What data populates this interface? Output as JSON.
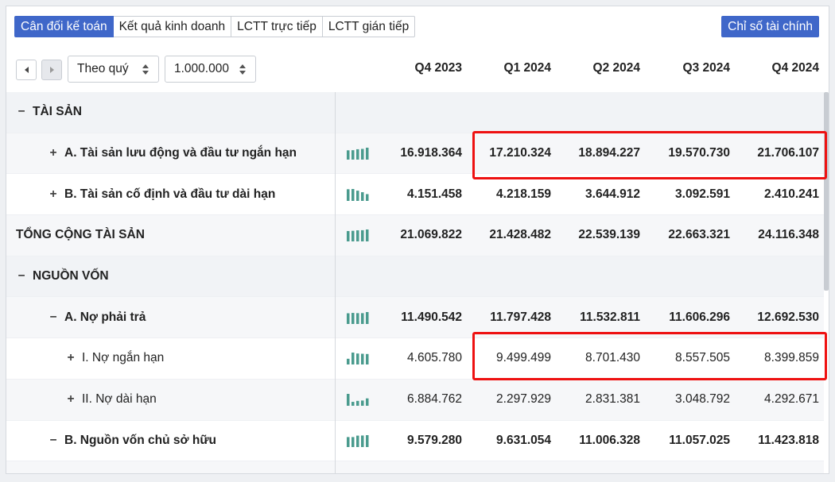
{
  "tabs": [
    "Cân đối kế toán",
    "Kết quả kinh doanh",
    "LCTT trực tiếp",
    "LCTT gián tiếp"
  ],
  "active_tab": 0,
  "ratio_button": "Chỉ số tài chính",
  "controls": {
    "period": "Theo quý",
    "unit": "1.000.000"
  },
  "columns": [
    "Q4 2023",
    "Q1 2024",
    "Q2 2024",
    "Q3 2024",
    "Q4 2024"
  ],
  "colors": {
    "accent": "#3f67c9",
    "spark": "#4a9b8e",
    "highlight": "#ee1111"
  },
  "rows": [
    {
      "label": "TÀI SẢN",
      "toggle": "−",
      "indent": 0,
      "bold": true,
      "section": true,
      "values": []
    },
    {
      "label": "A. Tài sản lưu động và đầu tư ngắn hạn",
      "toggle": "+",
      "indent": 1,
      "bold": true,
      "values": [
        "16.918.364",
        "17.210.324",
        "18.894.227",
        "19.570.730",
        "21.706.107"
      ],
      "spark": [
        0.78,
        0.79,
        0.87,
        0.9,
        1.0
      ]
    },
    {
      "label": "B. Tài sản cố định và đầu tư dài hạn",
      "toggle": "+",
      "indent": 1,
      "bold": true,
      "values": [
        "4.151.458",
        "4.218.159",
        "3.644.912",
        "3.092.591",
        "2.410.241"
      ],
      "spark": [
        0.98,
        1.0,
        0.86,
        0.73,
        0.57
      ]
    },
    {
      "label": "TỔNG CỘNG TÀI SẢN",
      "toggle": "",
      "indent": 0,
      "bold": true,
      "values": [
        "21.069.822",
        "21.428.482",
        "22.539.139",
        "22.663.321",
        "24.116.348"
      ],
      "spark": [
        0.87,
        0.89,
        0.93,
        0.94,
        1.0
      ]
    },
    {
      "label": "NGUỒN VỐN",
      "toggle": "−",
      "indent": 0,
      "bold": true,
      "section": true,
      "values": []
    },
    {
      "label": "A. Nợ phải trả",
      "toggle": "−",
      "indent": 1,
      "bold": true,
      "values": [
        "11.490.542",
        "11.797.428",
        "11.532.811",
        "11.606.296",
        "12.692.530"
      ],
      "spark": [
        0.9,
        0.93,
        0.91,
        0.91,
        1.0
      ]
    },
    {
      "label": "I. Nợ ngắn hạn",
      "toggle": "+",
      "indent": 2,
      "bold": false,
      "values": [
        "4.605.780",
        "9.499.499",
        "8.701.430",
        "8.557.505",
        "8.399.859"
      ],
      "spark": [
        0.48,
        1.0,
        0.92,
        0.9,
        0.88
      ]
    },
    {
      "label": "II. Nợ dài hạn",
      "toggle": "+",
      "indent": 2,
      "bold": false,
      "values": [
        "6.884.762",
        "2.297.929",
        "2.831.381",
        "3.048.792",
        "4.292.671"
      ],
      "spark": [
        1.0,
        0.33,
        0.41,
        0.44,
        0.62
      ]
    },
    {
      "label": "B. Nguồn vốn chủ sở hữu",
      "toggle": "−",
      "indent": 1,
      "bold": true,
      "values": [
        "9.579.280",
        "9.631.054",
        "11.006.328",
        "11.057.025",
        "11.423.818"
      ],
      "spark": [
        0.84,
        0.84,
        0.96,
        0.97,
        1.0
      ]
    },
    {
      "label": "",
      "toggle": "",
      "indent": 0,
      "bold": false,
      "values": [],
      "spark": []
    }
  ]
}
